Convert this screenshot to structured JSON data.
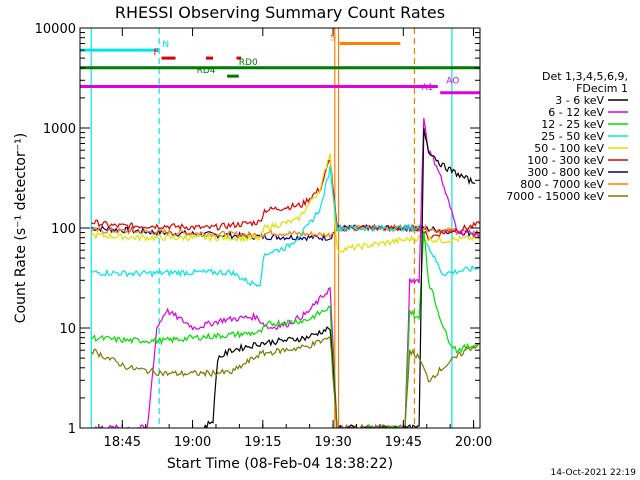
{
  "colors": {
    "background": "#ffffff",
    "axis": "#000000",
    "cyan": "#00e5e5",
    "red": "#e00000",
    "green": "#007a00",
    "magenta": "#e000e0",
    "orange": "#ff7f00"
  },
  "chart_data": {
    "type": "line",
    "title": "RHESSI Observing Summary Count Rates",
    "xlabel": "Start Time (08-Feb-04 18:38:22)",
    "ylabel": "Count Rate (s⁻¹ detector⁻¹)",
    "y_scale": "log",
    "ylim": [
      1,
      10000
    ],
    "xlim_minutes": [
      -2.4,
      83
    ],
    "x_ticks": [
      {
        "label": "18:45",
        "value": 6.63
      },
      {
        "label": "19:00",
        "value": 21.63
      },
      {
        "label": "19:15",
        "value": 36.63
      },
      {
        "label": "19:30",
        "value": 51.63
      },
      {
        "label": "19:45",
        "value": 66.63
      },
      {
        "label": "20:00",
        "value": 81.63
      },
      {
        "label": "20:15",
        "value": 96.63
      }
    ],
    "y_ticks": [
      {
        "label": "1",
        "value": 1
      },
      {
        "label": "10",
        "value": 10
      },
      {
        "label": "100",
        "value": 100
      },
      {
        "label": "1000",
        "value": 1000
      },
      {
        "label": "10000",
        "value": 10000
      }
    ],
    "legend": {
      "placement": "right",
      "header": [
        "Det 1,3,4,5,6,9,",
        "FDecim 1"
      ],
      "entries": [
        {
          "label": "3 - 6 keV",
          "color": "#000000"
        },
        {
          "label": "6 - 12 keV",
          "color": "#e000e0"
        },
        {
          "label": "12 - 25 keV",
          "color": "#00e000"
        },
        {
          "label": "25 - 50 keV",
          "color": "#00e5e5"
        },
        {
          "label": "50 - 100 keV",
          "color": "#e0e000"
        },
        {
          "label": "100 - 300 keV",
          "color": "#e00000"
        },
        {
          "label": "300 - 800 keV",
          "color": "#00007a"
        },
        {
          "label": "800 - 7000 keV",
          "color": "#ff7f00"
        },
        {
          "label": "7000 - 15000 keV",
          "color": "#7a7a00"
        }
      ]
    },
    "series": [
      {
        "color": "#00007a",
        "points": [
          [
            0,
            100
          ],
          [
            15,
            90
          ],
          [
            36,
            82
          ],
          [
            51,
            80
          ],
          [
            52.5,
            100
          ],
          [
            70,
            100
          ],
          [
            75,
            95
          ],
          [
            80,
            90
          ],
          [
            83,
            88
          ]
        ]
      },
      {
        "color": "#ff7f00",
        "points": [
          [
            0,
            95
          ],
          [
            36,
            85
          ],
          [
            38,
            90
          ],
          [
            51,
            85
          ],
          [
            52.5,
            100
          ],
          [
            70,
            100
          ],
          [
            75,
            95
          ],
          [
            83,
            90
          ]
        ]
      },
      {
        "color": "#e00000",
        "points": [
          [
            0,
            115
          ],
          [
            5,
            105
          ],
          [
            15,
            105
          ],
          [
            25,
            100
          ],
          [
            36,
            115
          ],
          [
            37,
            150
          ],
          [
            45,
            170
          ],
          [
            49,
            250
          ],
          [
            50.5,
            420
          ],
          [
            51,
            500
          ],
          [
            52.5,
            100
          ],
          [
            70,
            100
          ],
          [
            72,
            80
          ],
          [
            75,
            90
          ],
          [
            80,
            100
          ],
          [
            83,
            110
          ]
        ]
      },
      {
        "color": "#e0e000",
        "points": [
          [
            0,
            85
          ],
          [
            10,
            80
          ],
          [
            15,
            80
          ],
          [
            30,
            80
          ],
          [
            36,
            78
          ],
          [
            37,
            100
          ],
          [
            44,
            120
          ],
          [
            49,
            250
          ],
          [
            50.5,
            480
          ],
          [
            51,
            550
          ],
          [
            52.5,
            60
          ],
          [
            70,
            80
          ],
          [
            75,
            75
          ],
          [
            83,
            80
          ]
        ]
      },
      {
        "color": "#00e5e5",
        "points": [
          [
            0,
            36
          ],
          [
            10,
            35
          ],
          [
            20,
            36
          ],
          [
            30,
            36
          ],
          [
            34,
            28
          ],
          [
            36,
            28
          ],
          [
            37,
            55
          ],
          [
            42,
            65
          ],
          [
            46,
            100
          ],
          [
            49,
            160
          ],
          [
            51,
            400
          ],
          [
            52.5,
            100
          ],
          [
            70,
            100
          ],
          [
            75,
            35
          ],
          [
            80,
            38
          ],
          [
            83,
            40
          ]
        ]
      },
      {
        "color": "#e000e0",
        "points": [
          [
            0,
            1
          ],
          [
            12,
            1
          ],
          [
            14,
            10
          ],
          [
            16,
            15
          ],
          [
            22,
            10
          ],
          [
            28,
            12
          ],
          [
            35,
            13
          ],
          [
            38,
            10
          ],
          [
            42,
            11
          ],
          [
            46,
            14
          ],
          [
            51,
            25
          ],
          [
            52.5,
            1
          ],
          [
            67,
            1
          ],
          [
            68,
            30
          ],
          [
            70,
            30
          ],
          [
            71,
            1300
          ],
          [
            72,
            600
          ],
          [
            74,
            400
          ],
          [
            76,
            200
          ],
          [
            78,
            100
          ],
          [
            79,
            90
          ],
          [
            80,
            90
          ],
          [
            83,
            85
          ]
        ]
      },
      {
        "color": "#00e000",
        "points": [
          [
            0,
            8
          ],
          [
            8,
            7.5
          ],
          [
            16,
            7.5
          ],
          [
            22,
            8
          ],
          [
            36,
            9
          ],
          [
            38,
            11
          ],
          [
            46,
            12
          ],
          [
            51,
            16
          ],
          [
            52.5,
            1
          ],
          [
            67,
            1
          ],
          [
            68,
            15
          ],
          [
            70,
            12
          ],
          [
            71,
            100
          ],
          [
            72,
            30
          ],
          [
            74,
            15
          ],
          [
            76,
            8
          ],
          [
            78,
            6
          ],
          [
            83,
            7
          ]
        ]
      },
      {
        "color": "#000000",
        "points": [
          [
            24,
            1
          ],
          [
            26,
            1.2
          ],
          [
            27,
            5
          ],
          [
            30,
            6
          ],
          [
            36,
            7
          ],
          [
            46,
            8
          ],
          [
            51,
            10
          ],
          [
            52.5,
            1
          ],
          [
            70,
            1
          ],
          [
            71,
            1000
          ],
          [
            72,
            600
          ],
          [
            75,
            420
          ],
          [
            79,
            330
          ],
          [
            82,
            280
          ]
        ]
      },
      {
        "color": "#7a7a00",
        "points": [
          [
            0,
            6
          ],
          [
            8,
            4
          ],
          [
            16,
            3.5
          ],
          [
            22,
            3.5
          ],
          [
            30,
            3.6
          ],
          [
            36,
            5.5
          ],
          [
            46,
            6.5
          ],
          [
            51,
            8
          ],
          [
            52.5,
            1
          ],
          [
            67,
            1
          ],
          [
            68,
            6
          ],
          [
            70,
            5
          ],
          [
            72,
            3
          ],
          [
            75,
            4
          ],
          [
            80,
            6
          ],
          [
            83,
            7
          ]
        ]
      }
    ],
    "vertical_markers": [
      {
        "x": 14.5,
        "color": "#00e5e5",
        "style": "dashed"
      },
      {
        "x": 52.0,
        "color": "#ff7f00",
        "style": "solid"
      },
      {
        "x": 52.8,
        "color": "#ff7f00",
        "style": "solid"
      },
      {
        "x": 69.0,
        "color": "#ff7f00",
        "style": "dashed"
      },
      {
        "x": 77.0,
        "color": "#00e5e5",
        "style": "solid"
      },
      {
        "x": 86.0,
        "color": "#00e5e5",
        "style": "dashed"
      },
      {
        "x": 0.0,
        "color": "#00e5e5",
        "style": "solid"
      }
    ],
    "flag_bars": [
      {
        "label": "N",
        "color": "#00e5e5",
        "y": 6000,
        "segments": [
          [
            -2.4,
            14.5
          ],
          [
            86.5,
            110
          ]
        ],
        "label_x": 15.2
      },
      {
        "label": "F",
        "color": "#e00000",
        "y": 5000,
        "segments": [
          [
            15,
            18
          ],
          [
            24.5,
            26
          ],
          [
            31,
            32
          ]
        ],
        "label_x": 13.3
      },
      {
        "label": "S",
        "color": "#ff7f00",
        "y": 7000,
        "segments": [
          [
            53,
            66
          ]
        ],
        "label_x": 51
      },
      {
        "label": "RD0",
        "color": "#007a00",
        "y": 4000,
        "segments": [
          [
            -2.4,
            110
          ]
        ],
        "label_x": 31.5
      },
      {
        "label": "RD4",
        "color": "#007a00",
        "y": 3300,
        "segments": [
          [
            29,
            31.5
          ]
        ],
        "label_x": 22.5
      },
      {
        "label": "AO",
        "color": "#e000e0",
        "y": 2600,
        "segments": [
          [
            -2.4,
            74
          ]
        ],
        "label_x": 75.8
      },
      {
        "label": "A1",
        "color": "#e000e0",
        "y": 2250,
        "segments": [
          [
            74.5,
            110
          ]
        ],
        "label_x": 70.5
      }
    ],
    "footer": "14-Oct-2021 22:19"
  }
}
